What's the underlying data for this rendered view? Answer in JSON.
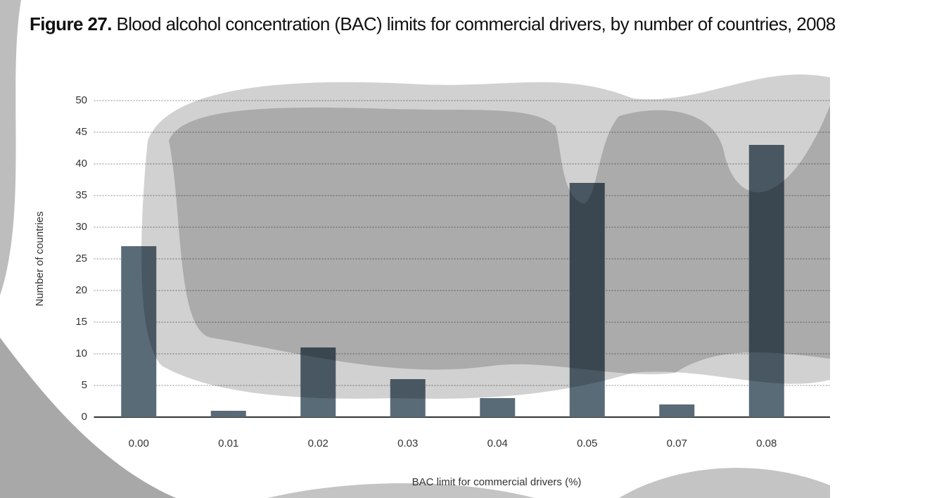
{
  "chart_data": {
    "type": "bar",
    "title_label": "Figure 27.",
    "title": "Blood alcohol concentration (BAC) limits for commercial drivers, by number of countries, 2008",
    "x_label": "BAC limit for commercial drivers (%)",
    "y_label": "Number of countries",
    "categories": [
      "0.00",
      "0.01",
      "0.02",
      "0.03",
      "0.04",
      "0.05",
      "0.07",
      "0.08"
    ],
    "values": [
      27,
      1,
      11,
      6,
      3,
      37,
      2,
      43
    ],
    "color": "#5a6b78",
    "ylim": [
      0,
      50
    ],
    "yticks": [
      0,
      5,
      10,
      15,
      20,
      25,
      30,
      35,
      40,
      45,
      50
    ],
    "grid": true
  }
}
